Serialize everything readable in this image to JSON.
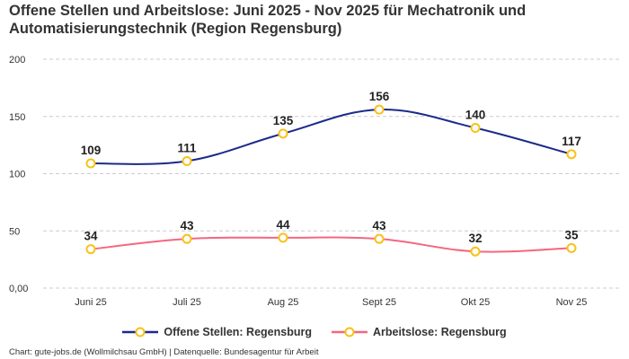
{
  "chart_data": {
    "type": "line",
    "title": "Offene Stellen und Arbeitslose: Juni 2025 - Nov 2025 für Mechatronik und Automatisierungstechnik (Region Regensburg)",
    "categories": [
      "Juni 25",
      "Juli 25",
      "Aug 25",
      "Sept 25",
      "Okt 25",
      "Nov 25"
    ],
    "series": [
      {
        "name": "Offene Stellen: Regensburg",
        "values": [
          109,
          111,
          135,
          156,
          140,
          117
        ],
        "color": "#1b2a8a"
      },
      {
        "name": "Arbeitslose: Regensburg",
        "values": [
          34,
          43,
          44,
          43,
          32,
          35
        ],
        "color": "#f4677f"
      }
    ],
    "marker_color": "#f7c21a",
    "yticks": [
      "0,00",
      "50",
      "100",
      "150",
      "200"
    ],
    "ylim": [
      0,
      200
    ],
    "grid": true,
    "legend": "bottom",
    "footer": "Chart: gute-jobs.de (Wollmilchsau GmbH) | Datenquelle: Bundesagentur für Arbeit"
  }
}
